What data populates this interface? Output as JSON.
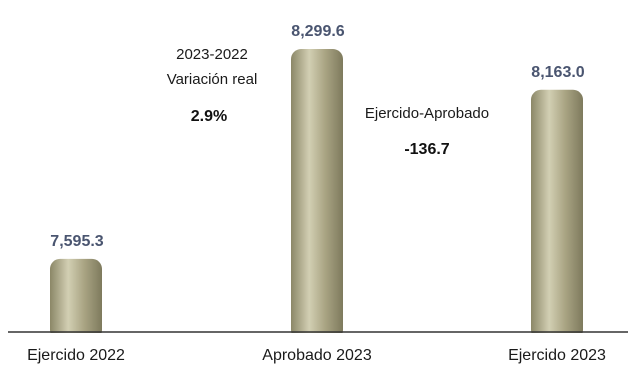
{
  "chart_data": {
    "type": "bar",
    "title": "",
    "xlabel": "",
    "ylabel": "",
    "categories": [
      "Ejercido 2022",
      "Aprobado 2023",
      "Ejercido 2023"
    ],
    "values": [
      7595.3,
      8299.6,
      8163.0
    ],
    "value_labels": [
      "7,595.3",
      "8,299.6",
      "8,163.0"
    ],
    "ylim": [
      7350,
      8330
    ],
    "grid": false,
    "colors": {
      "bar": "#aaa584",
      "bar_highlight": "#d2cfb3",
      "bar_shadow": "#7e7a5d",
      "value_label": "#4a5570",
      "baseline": "#333333"
    },
    "annotations": [
      {
        "lines": [
          "2023-2022",
          "Variación real"
        ],
        "value": "2.9%"
      },
      {
        "lines": [
          "Ejercido-Aprobado"
        ],
        "value": "-136.7"
      }
    ]
  }
}
